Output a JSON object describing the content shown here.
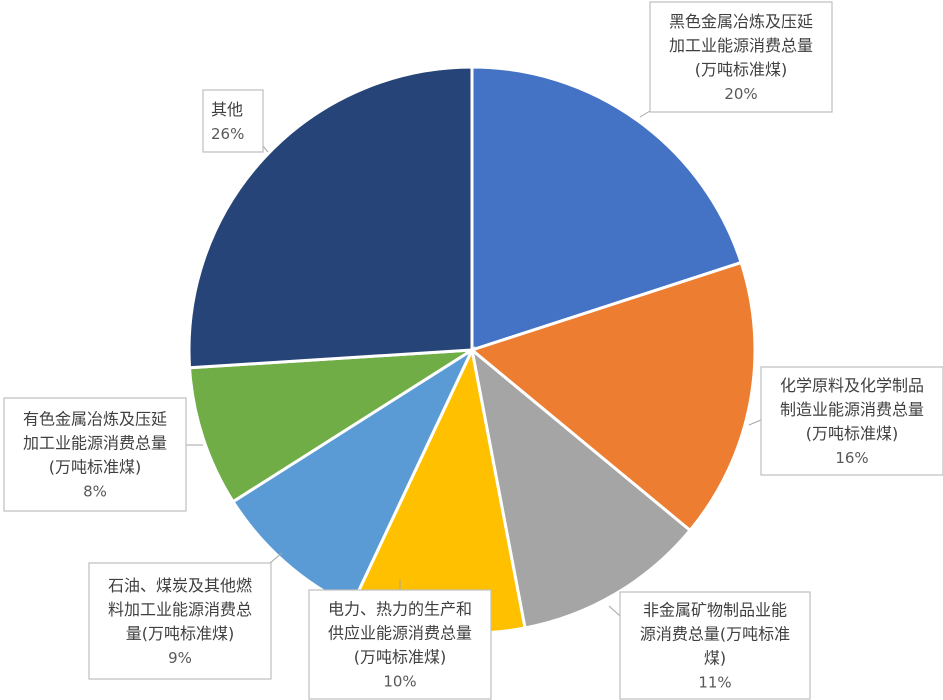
{
  "chart_data": {
    "type": "pie",
    "title": "",
    "start_angle_deg": 0,
    "direction": "clockwise",
    "slices": [
      {
        "label": [
          "黑色金属冶炼及压延",
          "加工业能源消费总量",
          "(万吨标准煤)"
        ],
        "value": 20,
        "pct_label": "20%",
        "color": "#4472C4"
      },
      {
        "label": [
          "化学原料及化学制品",
          "制造业能源消费总量",
          "(万吨标准煤)"
        ],
        "value": 16,
        "pct_label": "16%",
        "color": "#ED7D31"
      },
      {
        "label": [
          "非金属矿物制品业能",
          "源消费总量(万吨标准",
          "煤)"
        ],
        "value": 11,
        "pct_label": "11%",
        "color": "#A5A5A5"
      },
      {
        "label": [
          "电力、热力的生产和",
          "供应业能源消费总量",
          "(万吨标准煤)"
        ],
        "value": 10,
        "pct_label": "10%",
        "color": "#FFC000"
      },
      {
        "label": [
          "石油、煤炭及其他燃",
          "料加工业能源消费总",
          "量(万吨标准煤)"
        ],
        "value": 9,
        "pct_label": "9%",
        "color": "#5B9BD5"
      },
      {
        "label": [
          "有色金属冶炼及压延",
          "加工业能源消费总量",
          "(万吨标准煤)"
        ],
        "value": 8,
        "pct_label": "8%",
        "color": "#70AD47"
      },
      {
        "label": [
          "其他"
        ],
        "value": 26,
        "pct_label": "26%",
        "color": "#264478"
      }
    ]
  }
}
